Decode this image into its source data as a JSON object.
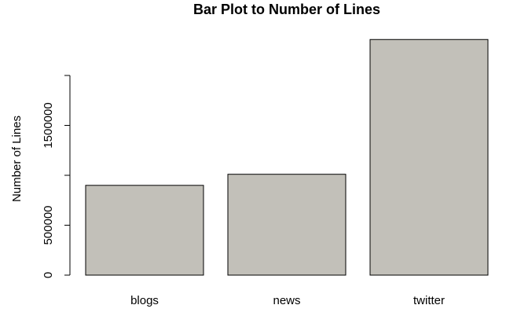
{
  "chart_data": {
    "type": "bar",
    "title": "Bar Plot to Number of Lines",
    "y_label": "Number of Lines",
    "categories": [
      "blogs",
      "news",
      "twitter"
    ],
    "values": [
      899288,
      1010242,
      2360148
    ],
    "color": "#c2c0b9",
    "ylim": [
      0,
      2400000
    ],
    "yticks": [
      0,
      500000,
      {
        "value": 1000000,
        "label": null
      },
      1500000,
      {
        "value": 2000000,
        "label": null
      }
    ]
  }
}
